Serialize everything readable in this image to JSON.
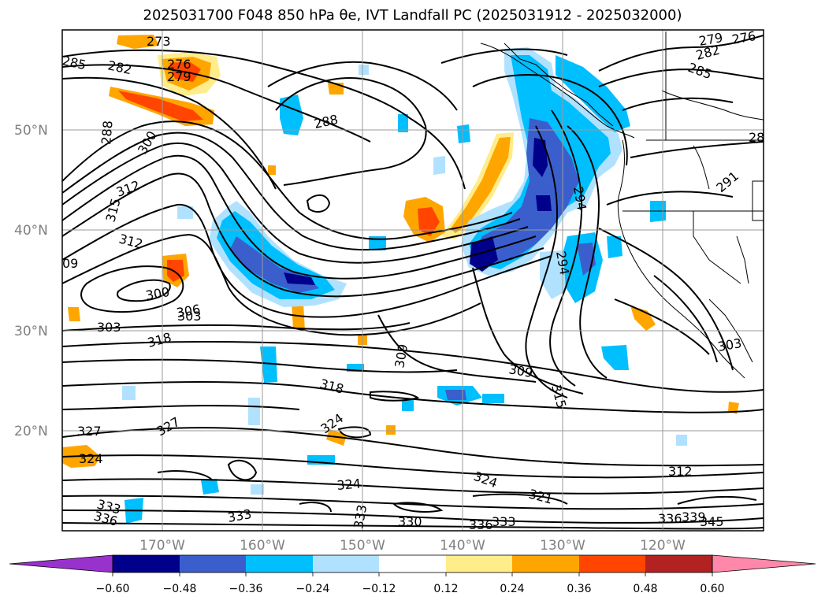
{
  "title": "2025031700 F048 850 hPa θe, IVT Landfall PC (2025031912 - 2025032000)",
  "lat_labels": [
    "50°N",
    "40°N",
    "30°N",
    "20°N"
  ],
  "lon_labels": [
    "170°W",
    "160°W",
    "150°W",
    "140°W",
    "130°W",
    "120°W"
  ],
  "colorbar": {
    "ticks": [
      "−0.60",
      "−0.48",
      "−0.36",
      "−0.24",
      "−0.12",
      "0.12",
      "0.24",
      "0.36",
      "0.48",
      "0.60"
    ],
    "colors": [
      "#9932cc",
      "#00008b",
      "#3a5fcd",
      "#00bfff",
      "#b0e2ff",
      "#ffffff",
      "#ffec8b",
      "#ffa500",
      "#ff4500",
      "#b22222",
      "#ff88aa"
    ]
  },
  "contour_labels": [
    "273",
    "276",
    "279",
    "282",
    "285",
    "288",
    "300",
    "312",
    "315",
    "312",
    "300",
    "303",
    "306",
    "318",
    "288",
    "309",
    "309",
    "318",
    "324",
    "327",
    "327",
    "324",
    "333",
    "336",
    "333",
    "324",
    "333",
    "330",
    "336",
    "333",
    "324",
    "321",
    "312",
    "315",
    "294",
    "294",
    "291",
    "282",
    "285",
    "279",
    "276",
    "303",
    "336",
    "339",
    "345",
    "09",
    "28",
    "303"
  ]
}
